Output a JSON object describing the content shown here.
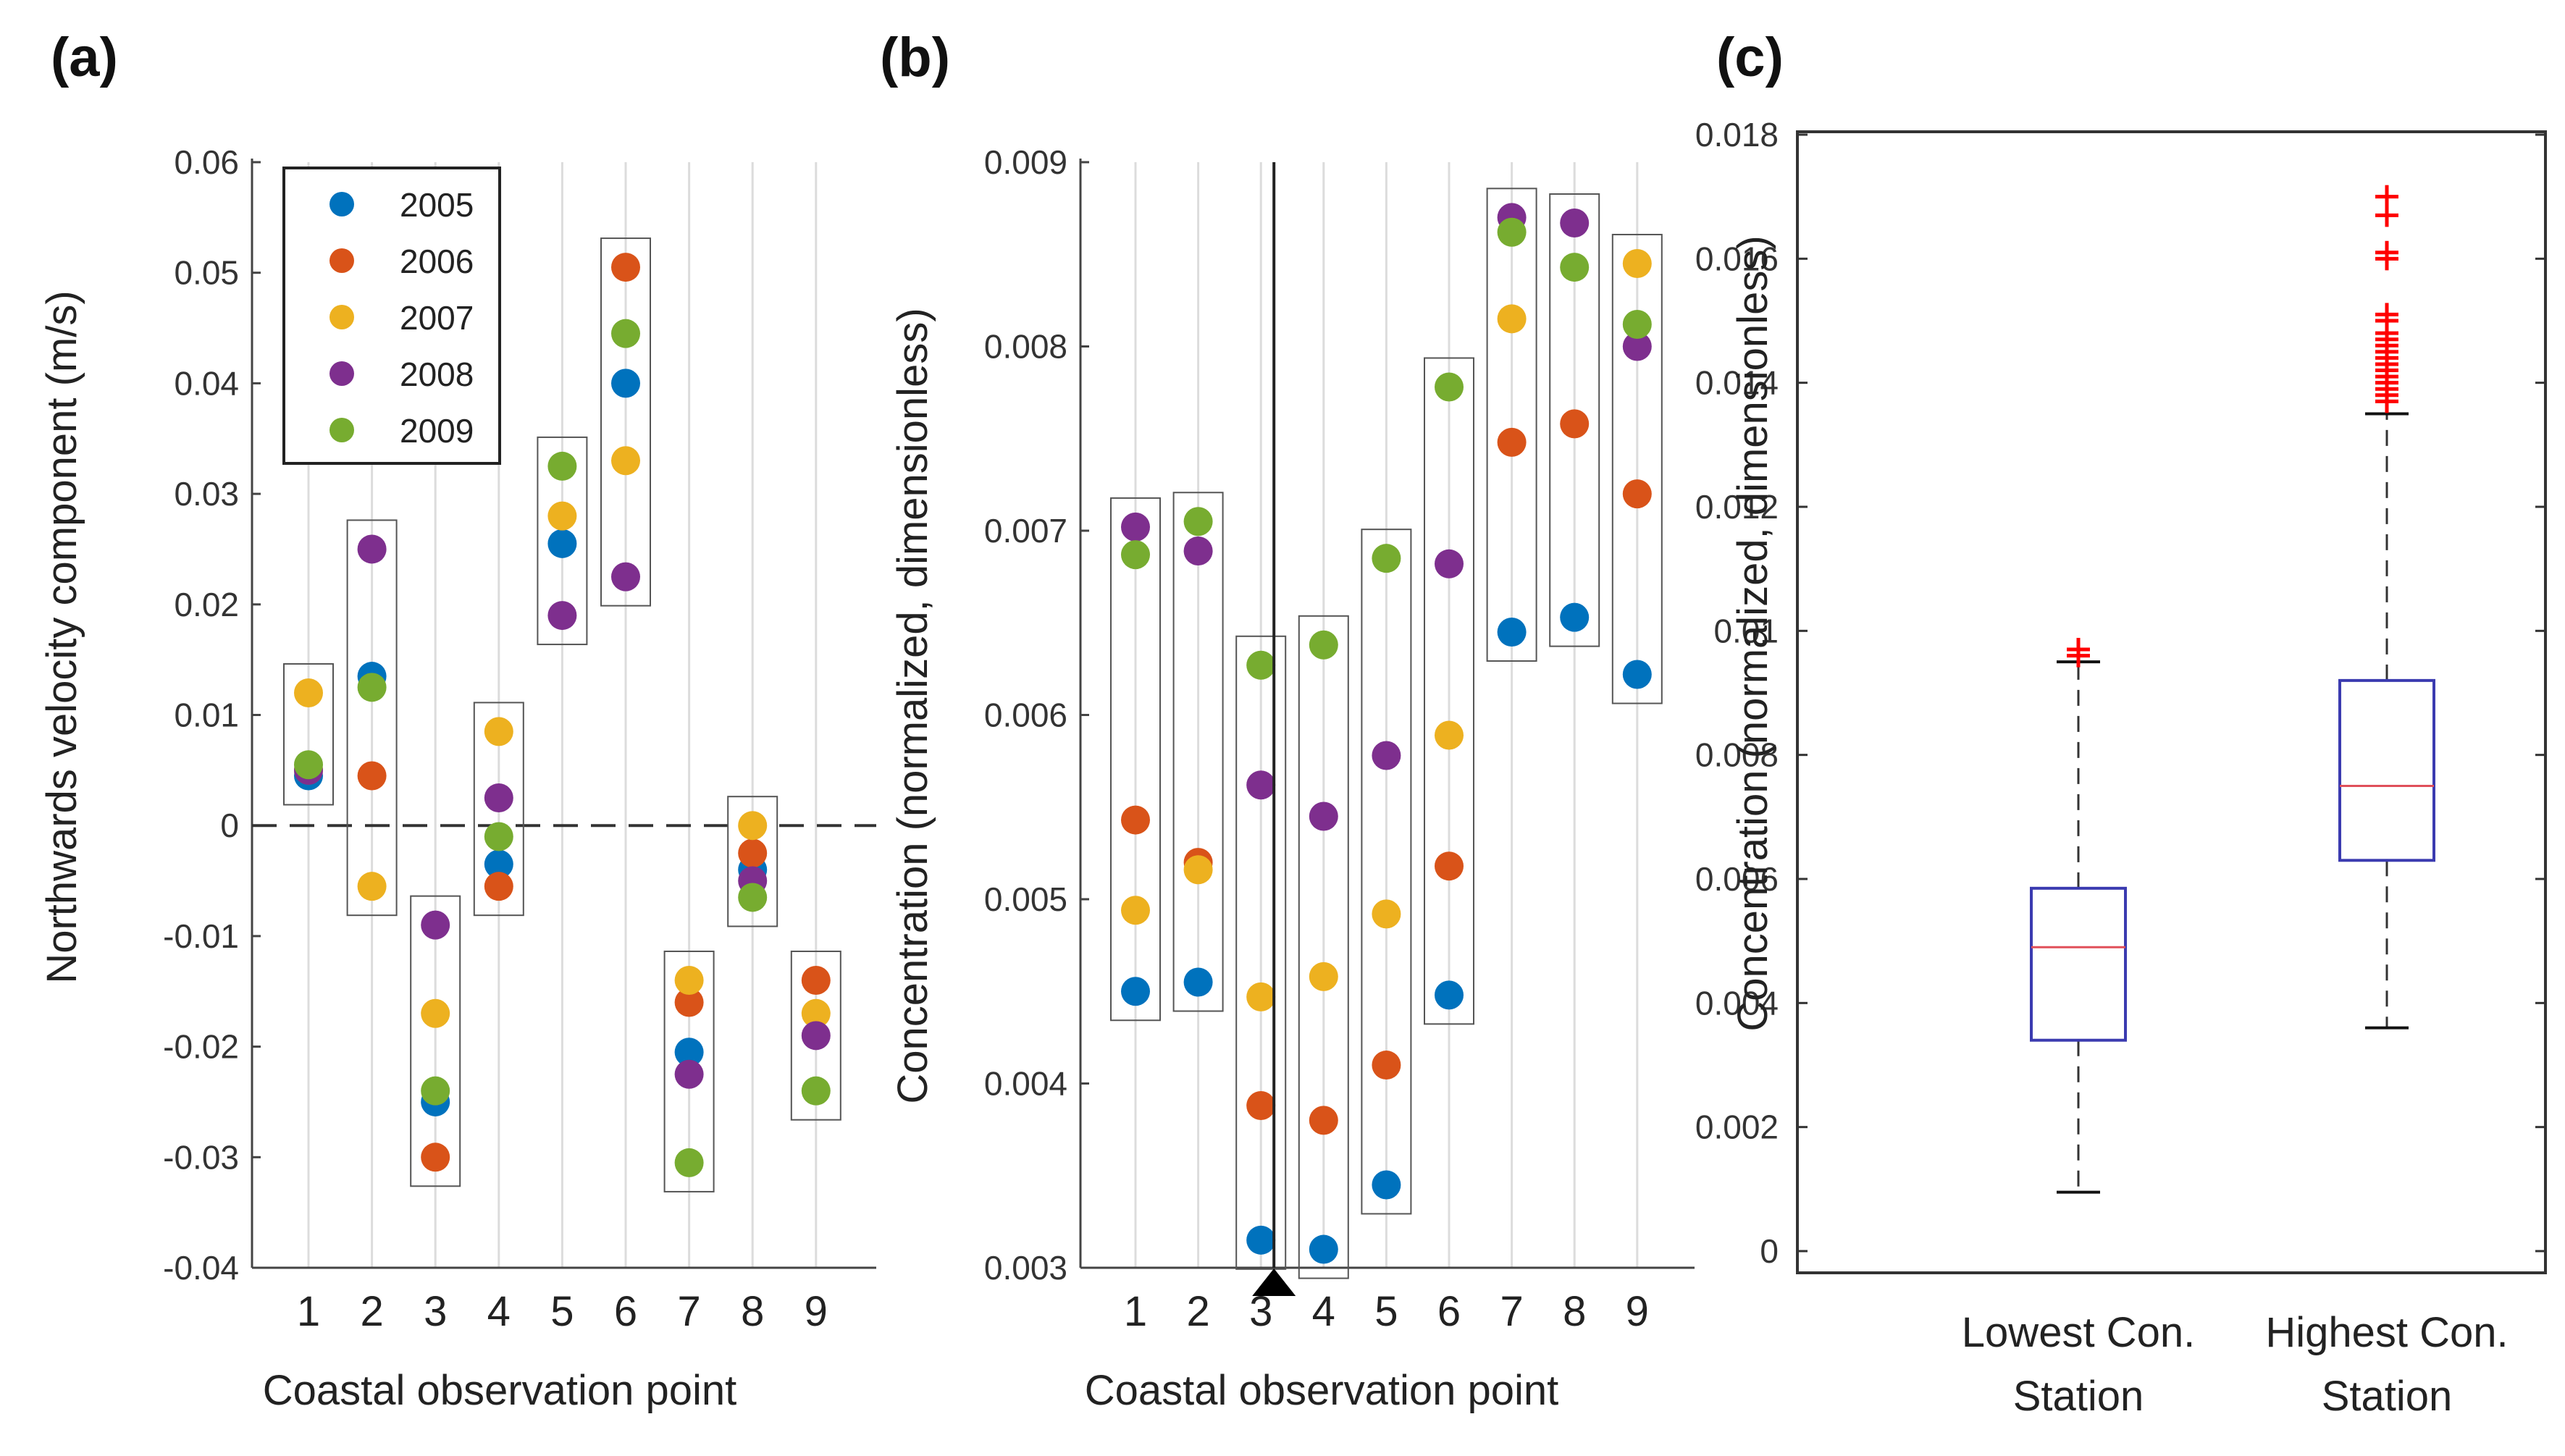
{
  "chart_data": [
    {
      "panel": "(a)",
      "type": "scatter",
      "xlabel": "Coastal observation point",
      "ylabel": "Northwards velocity component (m/s)",
      "categories": [
        "1",
        "2",
        "3",
        "4",
        "5",
        "6",
        "7",
        "8",
        "9"
      ],
      "ylim": [
        -0.04,
        0.06
      ],
      "yticks": [
        "0.06",
        "0.05",
        "0.04",
        "0.03",
        "0.02",
        "0.01",
        "0",
        "-0.01",
        "-0.02",
        "-0.03",
        "-0.04"
      ],
      "reference_line": 0,
      "grid": "vertical",
      "legend_position": "top-left",
      "series": [
        {
          "name": "2005",
          "color": "#0072BD",
          "values": [
            0.0045,
            0.0135,
            -0.025,
            -0.0035,
            0.0255,
            0.04,
            -0.0205,
            -0.004,
            null
          ]
        },
        {
          "name": "2006",
          "color": "#D95319",
          "values": [
            0.005,
            0.0045,
            -0.03,
            -0.0055,
            null,
            0.0505,
            -0.016,
            -0.0025,
            -0.014
          ]
        },
        {
          "name": "2007",
          "color": "#EDB120",
          "values": [
            0.012,
            -0.0055,
            -0.017,
            0.0085,
            0.028,
            0.033,
            -0.014,
            0.0,
            -0.017
          ]
        },
        {
          "name": "2008",
          "color": "#7E2F8E",
          "values": [
            0.005,
            0.025,
            -0.009,
            0.0025,
            0.019,
            0.0225,
            -0.0225,
            -0.005,
            -0.019
          ]
        },
        {
          "name": "2009",
          "color": "#77AC30",
          "values": [
            0.0055,
            0.0125,
            -0.024,
            -0.001,
            0.0325,
            0.0445,
            -0.0305,
            -0.0065,
            -0.024
          ]
        }
      ]
    },
    {
      "panel": "(b)",
      "type": "scatter",
      "xlabel": "Coastal observation point",
      "ylabel": "Concentration (normalized, dimensionless)",
      "categories": [
        "1",
        "2",
        "3",
        "4",
        "5",
        "6",
        "7",
        "8",
        "9"
      ],
      "ylim": [
        0.003,
        0.009
      ],
      "yticks": [
        "0.009",
        "0.008",
        "0.007",
        "0.006",
        "0.005",
        "0.004",
        "0.003"
      ],
      "marker_line_at": "3",
      "grid": "vertical",
      "series": [
        {
          "name": "2005",
          "color": "#0072BD",
          "values": [
            0.0045,
            0.00455,
            0.00315,
            0.0031,
            0.00345,
            0.00448,
            0.00645,
            0.00653,
            0.00622
          ]
        },
        {
          "name": "2006",
          "color": "#D95319",
          "values": [
            0.00543,
            0.0052,
            0.00388,
            0.0038,
            0.0041,
            0.00518,
            0.00748,
            0.00758,
            0.0072
          ]
        },
        {
          "name": "2007",
          "color": "#EDB120",
          "values": [
            0.00494,
            0.00516,
            0.00447,
            0.00458,
            0.00492,
            0.00589,
            0.00815,
            null,
            0.00845
          ]
        },
        {
          "name": "2008",
          "color": "#7E2F8E",
          "values": [
            0.00702,
            0.00689,
            0.00562,
            0.00545,
            0.00578,
            0.00682,
            0.0087,
            0.00867,
            0.008
          ]
        },
        {
          "name": "2009",
          "color": "#77AC30",
          "values": [
            0.00687,
            0.00705,
            0.00627,
            0.00638,
            0.00685,
            0.00778,
            0.00862,
            0.00843,
            0.00812
          ]
        }
      ]
    },
    {
      "panel": "(c)",
      "type": "boxplot",
      "ylabel": "Concentration (normalized, dimensionless)",
      "ylim": [
        0,
        0.018
      ],
      "yticks": [
        "0.018",
        "0.016",
        "0.014",
        "0.012",
        "0.01",
        "0.008",
        "0.006",
        "0.004",
        "0.002",
        "0"
      ],
      "categories": [
        [
          "Lowest Con.",
          "Station"
        ],
        [
          "Highest Con.",
          "Station"
        ]
      ],
      "box_color": "#3b3bb0",
      "median_color": "#e0505a",
      "outlier_color": "#ff0000",
      "boxes": [
        {
          "whisker_low": 0.00095,
          "q1": 0.0034,
          "median": 0.0049,
          "q3": 0.00585,
          "whisker_high": 0.0095,
          "outliers": [
            0.0096,
            0.0097
          ]
        },
        {
          "whisker_low": 0.0036,
          "q1": 0.0063,
          "median": 0.0075,
          "q3": 0.0092,
          "whisker_high": 0.0135,
          "outliers": [
            0.0137,
            0.0138,
            0.0139,
            0.014,
            0.0141,
            0.0142,
            0.0143,
            0.0144,
            0.0145,
            0.0146,
            0.0147,
            0.0148,
            0.015,
            0.0151,
            0.016,
            0.0161,
            0.0167,
            0.017
          ]
        }
      ]
    }
  ]
}
